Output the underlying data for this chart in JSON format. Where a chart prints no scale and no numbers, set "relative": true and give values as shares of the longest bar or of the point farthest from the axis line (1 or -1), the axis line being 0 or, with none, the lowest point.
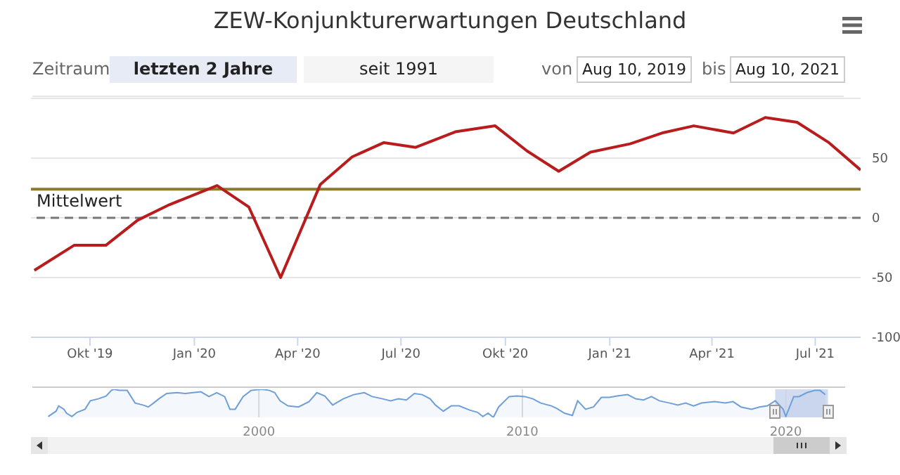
{
  "chart_data": [
    {
      "type": "line",
      "title": "ZEW-Konjunkturerwartungen Deutschland",
      "annotations": [
        "Zeitraum",
        "letzten 2 Jahre",
        "seit 1991",
        "von",
        "Aug 10, 2019",
        "bis",
        "Aug 10, 2021"
      ],
      "x": [
        "2019-08-13",
        "2019-09-17",
        "2019-10-15",
        "2019-11-12",
        "2019-12-10",
        "2020-01-21",
        "2020-02-18",
        "2020-03-17",
        "2020-04-21",
        "2020-05-19",
        "2020-06-16",
        "2020-07-14",
        "2020-08-18",
        "2020-09-22",
        "2020-10-20",
        "2020-11-17",
        "2020-12-15",
        "2021-01-19",
        "2021-02-16",
        "2021-03-16",
        "2021-04-20",
        "2021-05-18",
        "2021-06-15",
        "2021-07-13",
        "2021-08-10"
      ],
      "series": [
        {
          "color": "#b81c1c",
          "values": [
            -44,
            -23,
            -23,
            -2,
            11,
            27,
            9,
            -50,
            28,
            51,
            63,
            59,
            72,
            77,
            56,
            39,
            55,
            62,
            71,
            77,
            71,
            84,
            80,
            63,
            40
          ]
        }
      ],
      "xlim": [
        "2019-08-10",
        "2021-08-10"
      ],
      "xticks": [
        {
          "value": "2019-10-01",
          "label": "Okt '19"
        },
        {
          "value": "2020-01-01",
          "label": "Jan '20"
        },
        {
          "value": "2020-04-01",
          "label": "Apr '20"
        },
        {
          "value": "2020-07-01",
          "label": "Jul '20"
        },
        {
          "value": "2020-10-01",
          "label": "Okt '20"
        },
        {
          "value": "2021-01-01",
          "label": "Jan '21"
        },
        {
          "value": "2021-04-01",
          "label": "Apr '21"
        },
        {
          "value": "2021-07-01",
          "label": "Jul '21"
        }
      ],
      "ylim": [
        -100,
        100
      ],
      "yticks": [
        -100,
        -50,
        0,
        50,
        {
          "value": 100,
          "label": null
        }
      ],
      "ref_lines": [
        {
          "axis": "y",
          "value": 0,
          "color": "#777777",
          "line_style": "dashed"
        },
        {
          "axis": "y",
          "value": 24,
          "label": "Mittelwert",
          "color": "#8c7a2e",
          "line_style": "solid"
        }
      ],
      "grid": "y",
      "legend": false,
      "marker": "none",
      "line_style": "solid"
    },
    {
      "type": "area",
      "relative": true,
      "x": [
        1992.0,
        1992.3,
        1992.4,
        1992.6,
        1992.7,
        1992.9,
        1993.1,
        1993.4,
        1993.6,
        1993.9,
        1994.2,
        1994.4,
        1994.5,
        1994.7,
        1995.0,
        1995.3,
        1995.6,
        1995.8,
        1996.0,
        1996.2,
        1996.5,
        1996.9,
        1997.2,
        1997.5,
        1997.8,
        1998.1,
        1998.4,
        1998.7,
        1998.9,
        1999.1,
        1999.4,
        1999.7,
        2000.1,
        2000.4,
        2000.6,
        2000.8,
        2001.1,
        2001.5,
        2001.9,
        2002.2,
        2002.5,
        2002.8,
        2003.2,
        2003.6,
        2004.0,
        2004.3,
        2004.7,
        2005.0,
        2005.3,
        2005.6,
        2005.9,
        2006.2,
        2006.5,
        2006.7,
        2007.0,
        2007.3,
        2007.6,
        2008.0,
        2008.3,
        2008.5,
        2008.7,
        2008.9,
        2009.1,
        2009.5,
        2009.8,
        2010.1,
        2010.4,
        2010.7,
        2011.1,
        2011.3,
        2011.6,
        2011.9,
        2012.1,
        2012.4,
        2012.7,
        2013.0,
        2013.3,
        2013.6,
        2014.0,
        2014.3,
        2014.6,
        2014.9,
        2015.2,
        2015.6,
        2015.9,
        2016.2,
        2016.5,
        2016.8,
        2017.3,
        2017.7,
        2018.0,
        2018.3,
        2018.7,
        2019.0,
        2019.3,
        2019.6,
        2019.9,
        2020.0,
        2020.3,
        2020.5,
        2020.8,
        2021.1,
        2021.3,
        2021.5
      ],
      "series": [
        {
          "color": "#6f9fd8",
          "values": [
            0.03,
            0.22,
            0.41,
            0.29,
            0.15,
            0.03,
            0.18,
            0.29,
            0.59,
            0.66,
            0.76,
            0.96,
            1.0,
            0.96,
            0.96,
            0.51,
            0.44,
            0.37,
            0.51,
            0.66,
            0.85,
            0.88,
            0.85,
            0.88,
            0.91,
            0.74,
            0.88,
            0.74,
            0.29,
            0.29,
            0.74,
            0.96,
            1.0,
            0.96,
            0.88,
            0.59,
            0.41,
            0.37,
            0.56,
            0.88,
            0.76,
            0.44,
            0.66,
            0.81,
            0.88,
            0.74,
            0.66,
            0.59,
            0.66,
            0.62,
            0.85,
            0.81,
            0.66,
            0.44,
            0.22,
            0.41,
            0.41,
            0.26,
            0.18,
            0.03,
            0.15,
            0,
            0.37,
            0.74,
            0.76,
            0.74,
            0.66,
            0.51,
            0.41,
            0.32,
            0.15,
            0.07,
            0.59,
            0.29,
            0.37,
            0.71,
            0.71,
            0.76,
            0.81,
            0.66,
            0.62,
            0.74,
            0.59,
            0.51,
            0.44,
            0.51,
            0.41,
            0.51,
            0.56,
            0.51,
            0.56,
            0.37,
            0.29,
            0.37,
            0.41,
            0.59,
            0.29,
            0.03,
            0.74,
            0.74,
            0.88,
            0.96,
            0.96,
            0.81
          ]
        }
      ],
      "xlim": [
        1991.4,
        2022.2
      ],
      "xticks": [
        2000,
        2010,
        2020
      ],
      "bands": [
        {
          "axis": "x",
          "from": 2019.6,
          "to": 2021.6,
          "color": "#c5d3ec"
        }
      ],
      "grid": "x",
      "legend": false
    }
  ]
}
